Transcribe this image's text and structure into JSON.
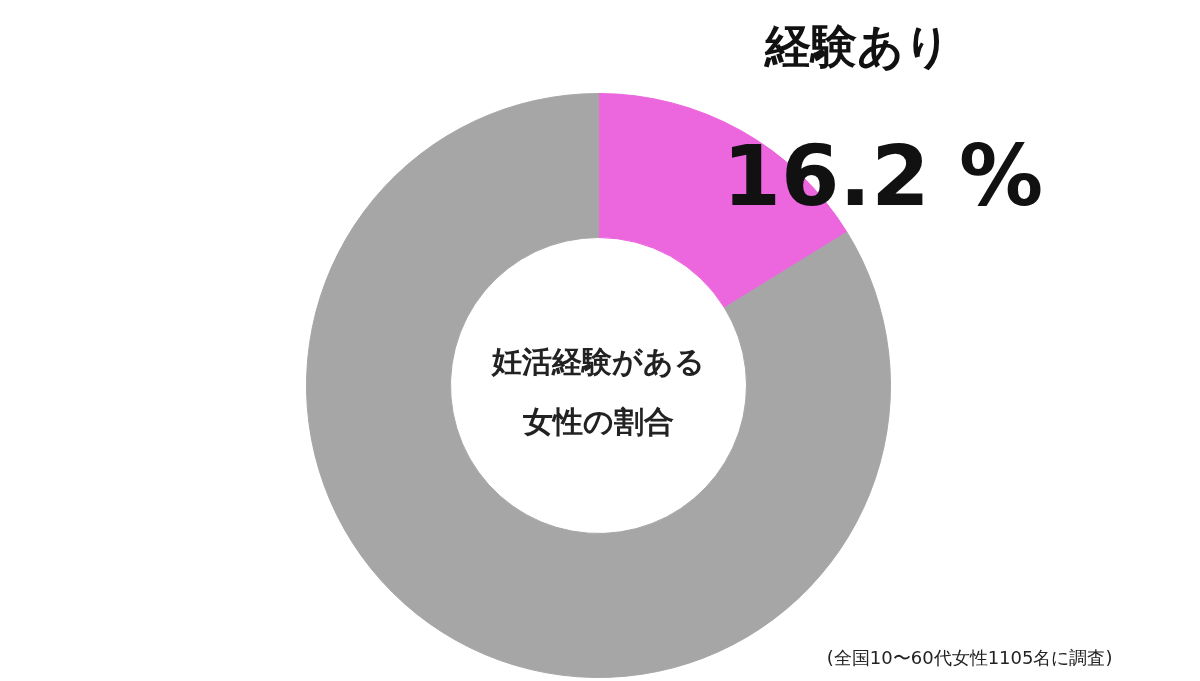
{
  "chart_data": {
    "type": "donut",
    "title": "妊活経験がある女性の割合",
    "categories": [
      "経験あり",
      null
    ],
    "values": [
      16.2,
      83.8
    ],
    "colors": [
      "#ec66de",
      "#a6a6a6"
    ],
    "value_labels": [
      "16.2 %",
      null
    ],
    "annotations": [
      "(全国10〜60代女性1105名に調査)"
    ]
  }
}
